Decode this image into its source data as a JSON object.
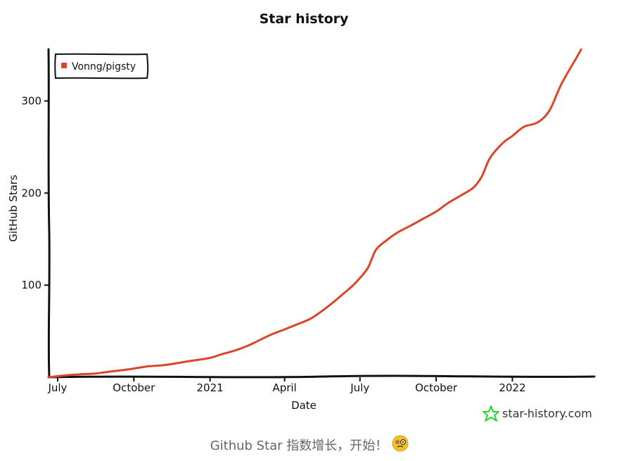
{
  "chart_data": {
    "type": "line",
    "title": "Star history",
    "xlabel": "Date",
    "ylabel": "GitHub Stars",
    "ylim": [
      0,
      360
    ],
    "xlim": [
      "2020-06-20",
      "2022-04-10"
    ],
    "yticks": [
      100,
      200,
      300
    ],
    "xticks": [
      {
        "label": "July",
        "date": "2020-07-01"
      },
      {
        "label": "October",
        "date": "2020-10-01"
      },
      {
        "label": "2021",
        "date": "2021-01-01"
      },
      {
        "label": "April",
        "date": "2021-04-01"
      },
      {
        "label": "July",
        "date": "2021-07-01"
      },
      {
        "label": "October",
        "date": "2021-10-01"
      },
      {
        "label": "2022",
        "date": "2022-01-01"
      }
    ],
    "legend": "top-left",
    "grid": false,
    "series": [
      {
        "name": "Vonng/pigsty",
        "color": "#dd4528",
        "points": [
          [
            "2020-06-20",
            0
          ],
          [
            "2020-07-10",
            2
          ],
          [
            "2020-07-25",
            3
          ],
          [
            "2020-08-15",
            4
          ],
          [
            "2020-09-01",
            6
          ],
          [
            "2020-09-20",
            8
          ],
          [
            "2020-10-05",
            10
          ],
          [
            "2020-10-20",
            12
          ],
          [
            "2020-11-05",
            13
          ],
          [
            "2020-11-20",
            15
          ],
          [
            "2020-12-10",
            18
          ],
          [
            "2021-01-01",
            21
          ],
          [
            "2021-01-15",
            25
          ],
          [
            "2021-01-31",
            29
          ],
          [
            "2021-02-15",
            34
          ],
          [
            "2021-03-01",
            40
          ],
          [
            "2021-03-15",
            46
          ],
          [
            "2021-04-01",
            52
          ],
          [
            "2021-04-15",
            57
          ],
          [
            "2021-05-01",
            63
          ],
          [
            "2021-05-10",
            68
          ],
          [
            "2021-05-25",
            78
          ],
          [
            "2021-06-10",
            90
          ],
          [
            "2021-06-25",
            102
          ],
          [
            "2021-07-10",
            118
          ],
          [
            "2021-07-20",
            138
          ],
          [
            "2021-08-01",
            148
          ],
          [
            "2021-08-15",
            157
          ],
          [
            "2021-09-01",
            165
          ],
          [
            "2021-09-15",
            172
          ],
          [
            "2021-10-01",
            180
          ],
          [
            "2021-10-15",
            189
          ],
          [
            "2021-11-01",
            198
          ],
          [
            "2021-11-15",
            206
          ],
          [
            "2021-11-25",
            218
          ],
          [
            "2021-12-05",
            238
          ],
          [
            "2021-12-20",
            254
          ],
          [
            "2022-01-01",
            262
          ],
          [
            "2022-01-15",
            272
          ],
          [
            "2022-02-01",
            277
          ],
          [
            "2022-02-15",
            290
          ],
          [
            "2022-03-01",
            318
          ],
          [
            "2022-03-20",
            348
          ],
          [
            "2022-03-25",
            356
          ]
        ]
      }
    ]
  },
  "watermark": {
    "text": "star-history.com",
    "icon": "star-icon",
    "icon_color": "#2bd62b"
  },
  "caption": {
    "text": "Github Star 指数增长，开始！",
    "emoji": "face-with-monocle-emoji"
  }
}
